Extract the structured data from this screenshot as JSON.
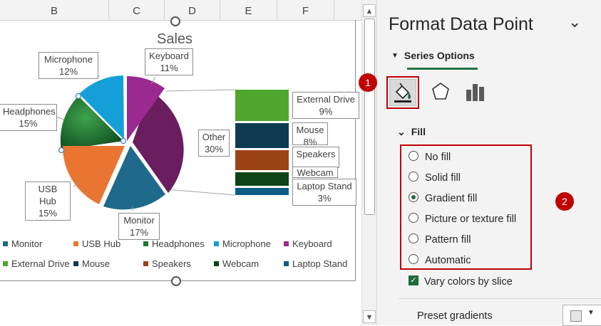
{
  "columns": [
    "B",
    "C",
    "D",
    "E",
    "F"
  ],
  "chart": {
    "title": "Sales",
    "labels": [
      {
        "name": "Keyboard",
        "pct": "11%"
      },
      {
        "name": "Microphone",
        "pct": "12%"
      },
      {
        "name": "Headphones",
        "pct": "15%"
      },
      {
        "name": "Other",
        "pct": "30%"
      },
      {
        "name": "USB Hub",
        "pct": "15%"
      },
      {
        "name": "Monitor",
        "pct": "17%"
      },
      {
        "name": "External Drive",
        "pct": "9%"
      },
      {
        "name": "Mouse",
        "pct": "8%"
      },
      {
        "name": "Speakers",
        "pct": ""
      },
      {
        "name": "Webcam",
        "pct": ""
      },
      {
        "name": "Laptop Stand",
        "pct": "3%"
      }
    ],
    "legend": [
      {
        "name": "Monitor",
        "color": "#1f6a8a"
      },
      {
        "name": "USB Hub",
        "color": "#ea7431"
      },
      {
        "name": "Headphones",
        "color": "#1a7c2e"
      },
      {
        "name": "Microphone",
        "color": "#159fd8"
      },
      {
        "name": "Keyboard",
        "color": "#9a2a8f"
      },
      {
        "name": "External Drive",
        "color": "#4fa72f"
      },
      {
        "name": "Mouse",
        "color": "#0e3b52"
      },
      {
        "name": "Speakers",
        "color": "#9c4316"
      },
      {
        "name": "Webcam",
        "color": "#0c4217"
      },
      {
        "name": "Laptop Stand",
        "color": "#0d5c86"
      }
    ],
    "other_color": "#6a1d5f"
  },
  "pane": {
    "title": "Format Data Point",
    "tab": "Series Options",
    "fill_header": "Fill",
    "options": [
      "No fill",
      "Solid fill",
      "Gradient fill",
      "Picture or texture fill",
      "Pattern fill",
      "Automatic"
    ],
    "selected": "Gradient fill",
    "checkbox_label": "Vary colors by slice",
    "preset_label": "Preset gradients",
    "badge1": "1",
    "badge2": "2"
  }
}
